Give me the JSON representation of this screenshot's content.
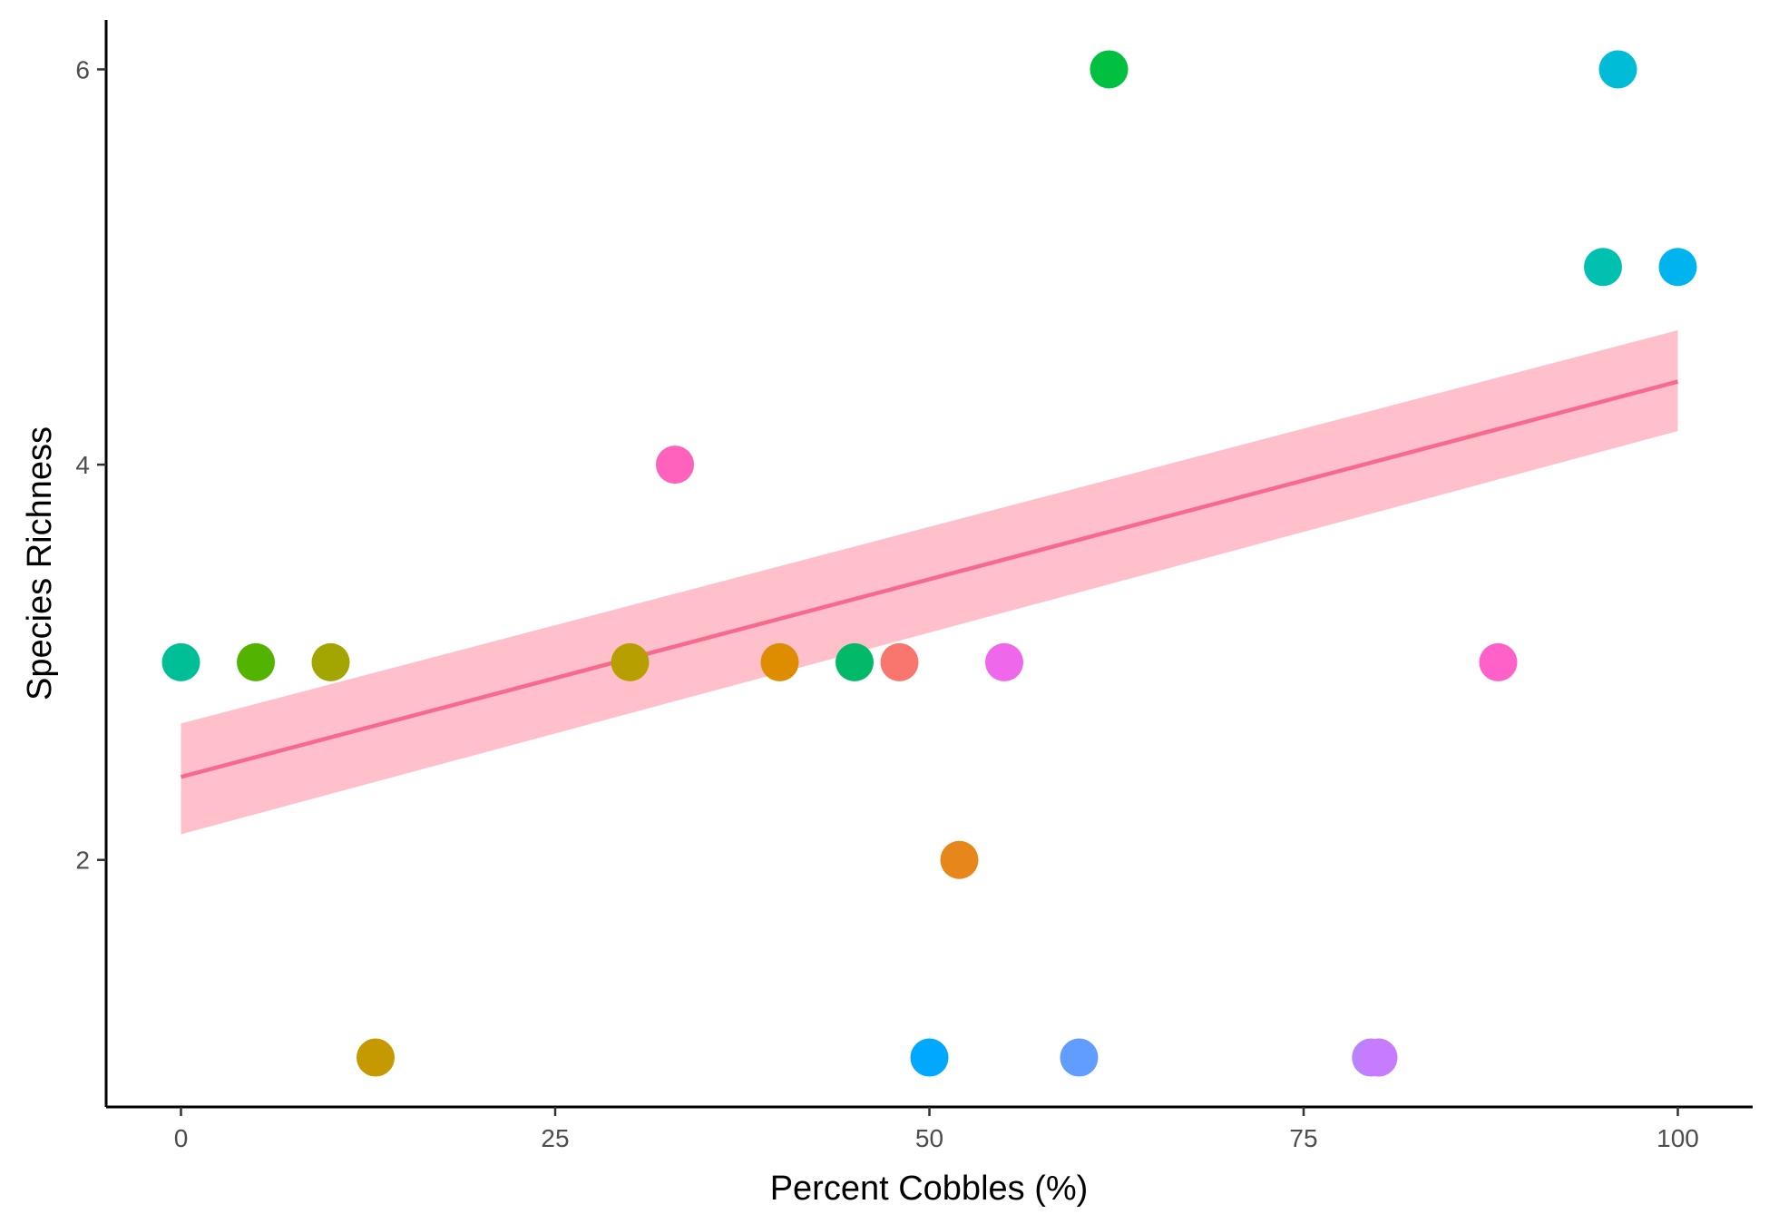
{
  "chart_data": {
    "type": "scatter",
    "xlabel": "Percent Cobbles (%)",
    "ylabel": "Species Richness",
    "xlim": [
      -5,
      105
    ],
    "ylim": [
      0.75,
      6.25
    ],
    "x_ticks": [
      0,
      25,
      50,
      75,
      100
    ],
    "x_tick_labels": [
      "0",
      "25",
      "50",
      "75",
      "100"
    ],
    "y_ticks": [
      2,
      4,
      6
    ],
    "y_tick_labels": [
      "2",
      "4",
      "6"
    ],
    "grid": false,
    "legend": "none",
    "points": [
      {
        "x": 0,
        "y": 3,
        "color": "#00BF96"
      },
      {
        "x": 5,
        "y": 3,
        "color": "#53B400"
      },
      {
        "x": 10,
        "y": 3,
        "color": "#A3A500"
      },
      {
        "x": 13,
        "y": 1,
        "color": "#C49A00"
      },
      {
        "x": 30,
        "y": 3,
        "color": "#B79F00"
      },
      {
        "x": 33,
        "y": 4,
        "color": "#FF62BC"
      },
      {
        "x": 40,
        "y": 3,
        "color": "#DE8C00"
      },
      {
        "x": 45,
        "y": 3,
        "color": "#00BA6A"
      },
      {
        "x": 48,
        "y": 3,
        "color": "#F8766D"
      },
      {
        "x": 50,
        "y": 1,
        "color": "#00A9FF"
      },
      {
        "x": 52,
        "y": 2,
        "color": "#E7861B"
      },
      {
        "x": 55,
        "y": 3,
        "color": "#EF67EB"
      },
      {
        "x": 60,
        "y": 1,
        "color": "#619CFF"
      },
      {
        "x": 62,
        "y": 6,
        "color": "#00C040"
      },
      {
        "x": 79.5,
        "y": 1,
        "color": "#B983FF"
      },
      {
        "x": 80,
        "y": 1,
        "color": "#C77CFF"
      },
      {
        "x": 88,
        "y": 3,
        "color": "#FF61C9"
      },
      {
        "x": 95,
        "y": 5,
        "color": "#00C0AF"
      },
      {
        "x": 96,
        "y": 6,
        "color": "#00BCD6"
      },
      {
        "x": 100,
        "y": 5,
        "color": "#00B4EF"
      }
    ],
    "fit": {
      "method": "linear",
      "x_range": [
        0,
        100
      ],
      "y_at_start": 2.42,
      "y_at_end": 4.42,
      "ci_low_at_start": 2.13,
      "ci_high_at_start": 2.69,
      "ci_low_at_end": 4.17,
      "ci_high_at_end": 4.68,
      "line_color": "#F8698E",
      "band_color": "#FFC0CB"
    }
  }
}
